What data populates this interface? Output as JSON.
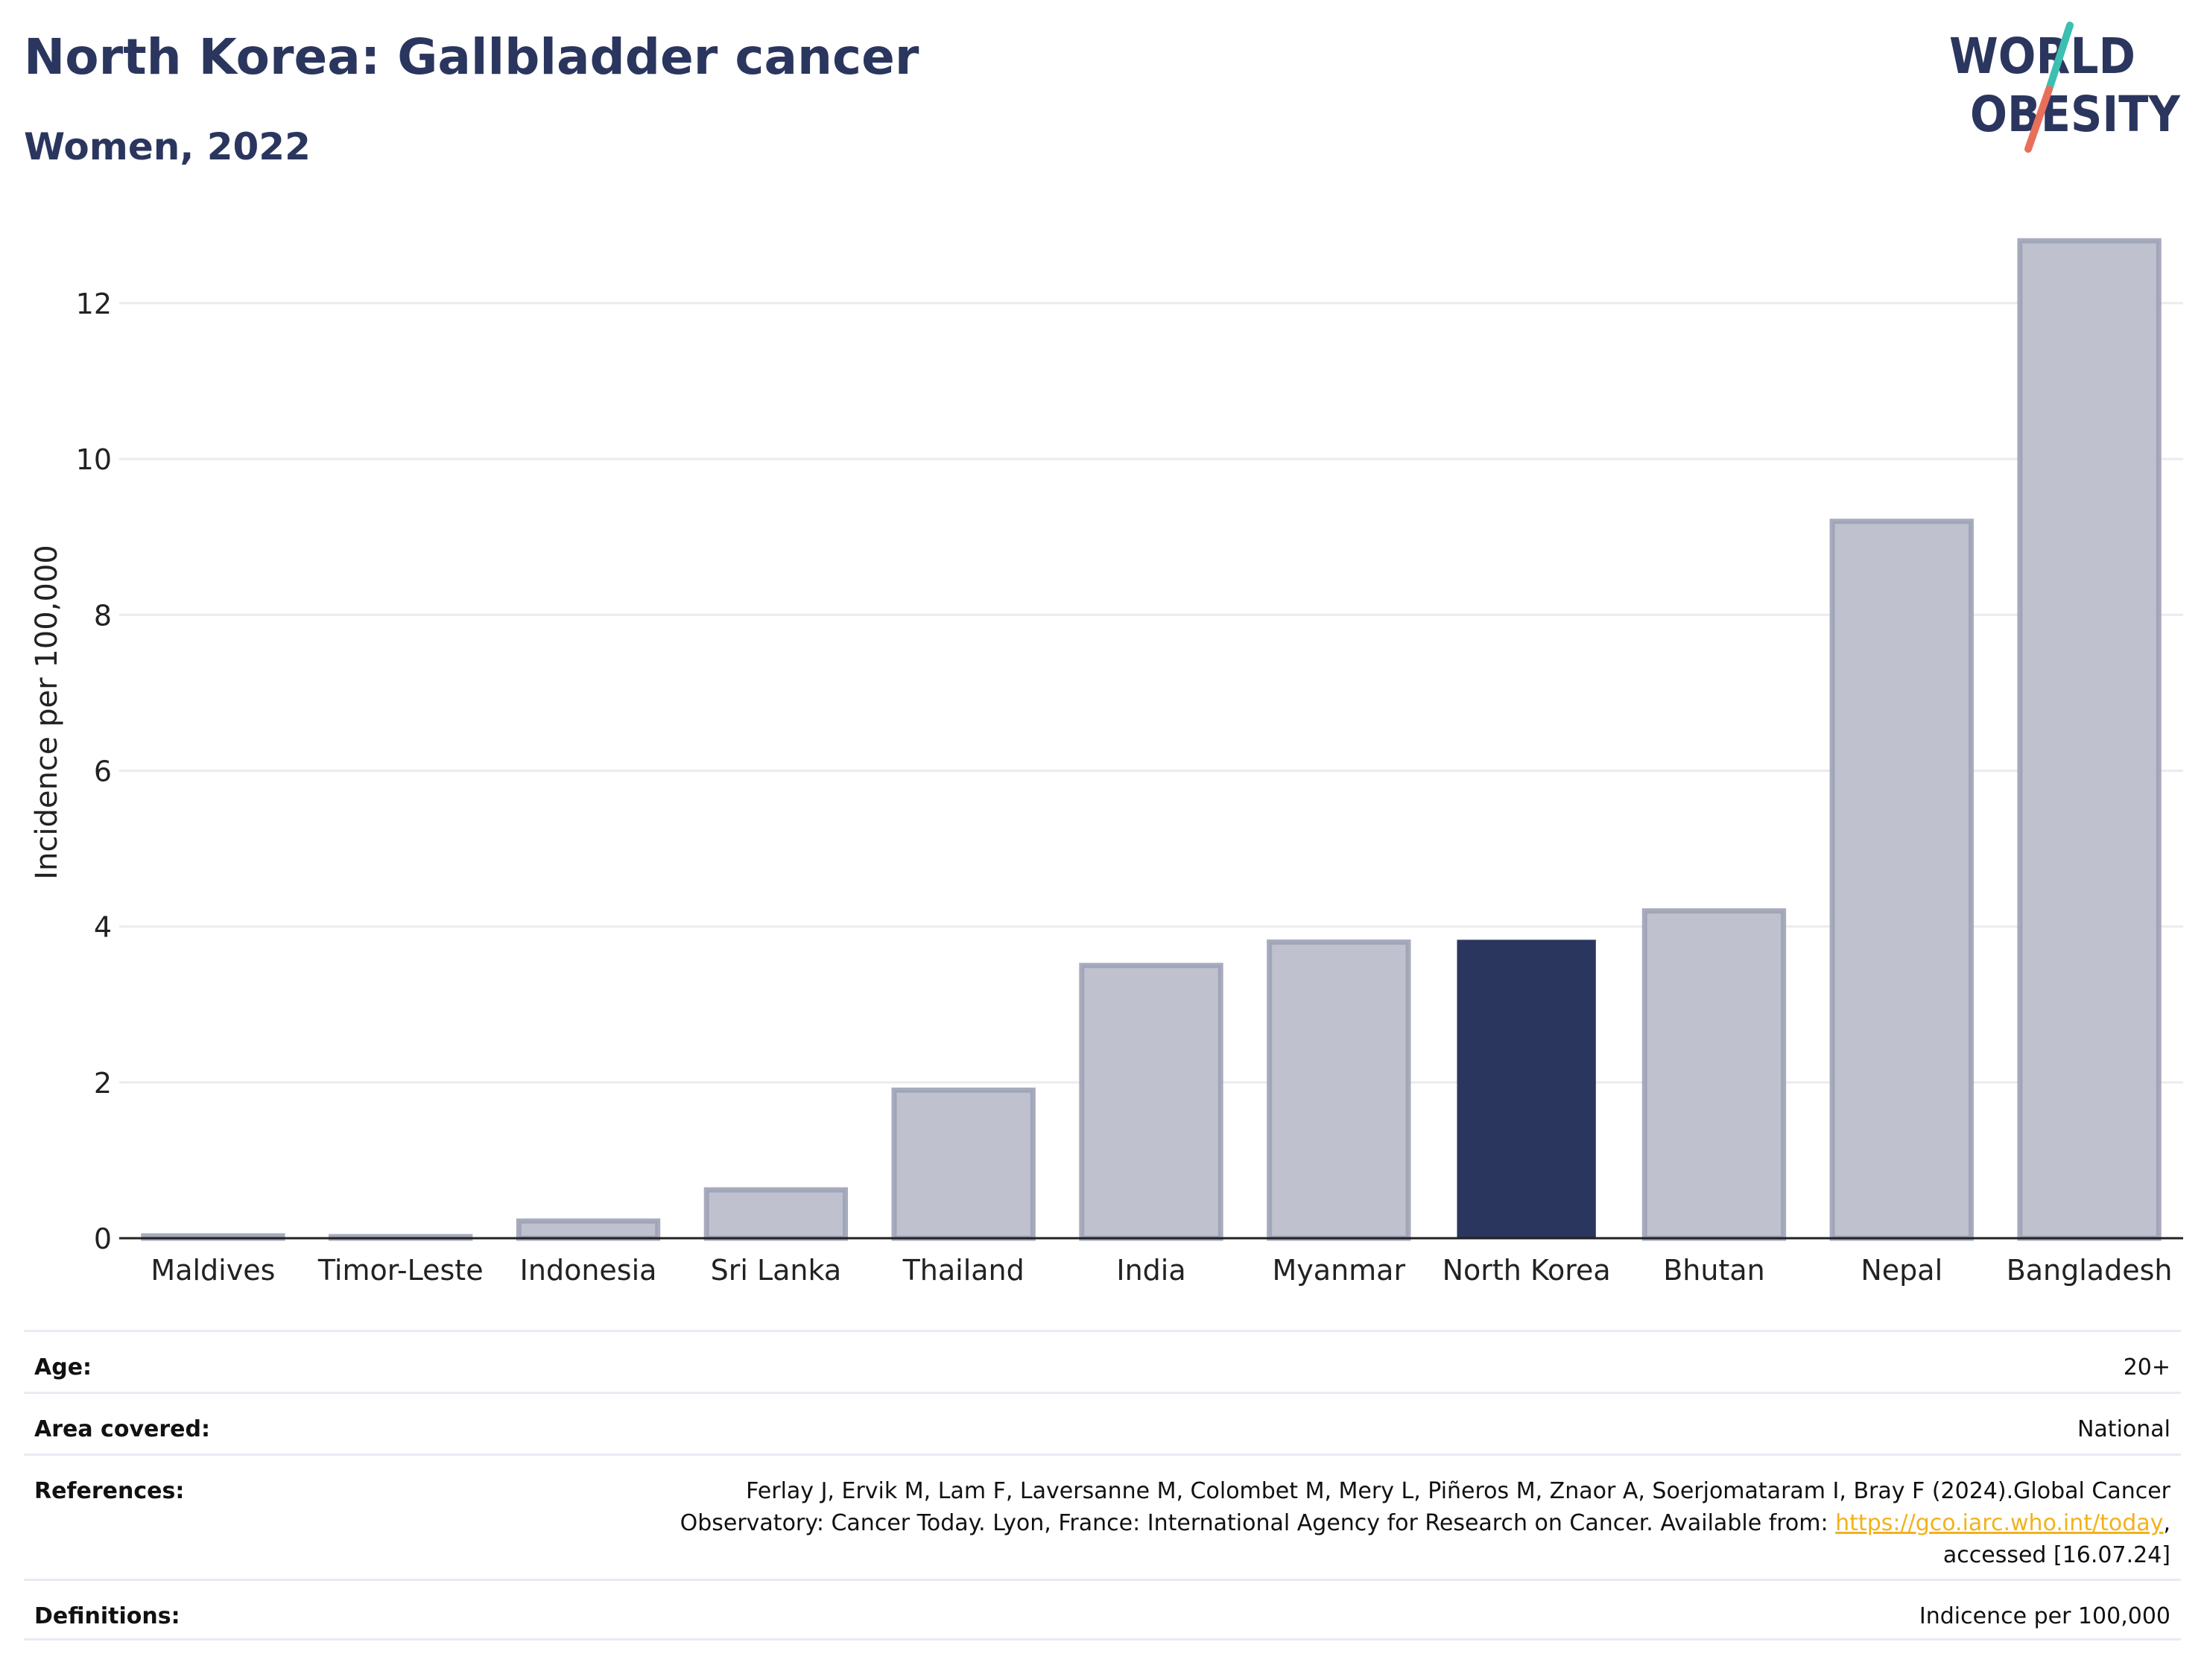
{
  "header": {
    "title": "North Korea: Gallbladder cancer",
    "subtitle": "Women, 2022"
  },
  "logo": {
    "line1": "WORLD",
    "line2": "OBESITY",
    "colors": {
      "text": "#2b365f",
      "slash_top": "#3bbfb0",
      "slash_bottom": "#e8705a"
    }
  },
  "chart_data": {
    "type": "bar",
    "categories": [
      "Maldives",
      "Timor-Leste",
      "Indonesia",
      "Sri Lanka",
      "Thailand",
      "India",
      "Myanmar",
      "North Korea",
      "Bhutan",
      "Nepal",
      "Bangladesh"
    ],
    "values": [
      0.03,
      0.02,
      0.22,
      0.62,
      1.9,
      3.5,
      3.8,
      3.83,
      4.2,
      9.2,
      12.8
    ],
    "highlight": "North Korea",
    "ylabel": "Incidence per 100,000",
    "xlabel": "",
    "ylim": [
      0,
      13.5
    ],
    "yticks": [
      0,
      2,
      4,
      6,
      8,
      10,
      12
    ],
    "grid": true,
    "colors": {
      "highlight": "#2b365f",
      "bar": "#bfc2ce",
      "bar_stroke": "#9da2b6",
      "grid": "#ebebf0",
      "axis": "#222222"
    }
  },
  "meta": {
    "age": {
      "label": "Age:",
      "value": "20+"
    },
    "area": {
      "label": "Area covered:",
      "value": "National"
    },
    "references": {
      "label": "References:",
      "line1": "Ferlay J, Ervik M, Lam F, Laversanne M, Colombet M, Mery L, Piñeros M, Znaor A, Soerjomataram I, Bray F (2024).Global Cancer",
      "line2_prefix": "Observatory: Cancer Today. Lyon, France: International Agency for Research on Cancer. Available from: ",
      "link": "https://gco.iarc.who.int/today",
      "line2_suffix": ",",
      "line3": "accessed [16.07.24]"
    },
    "definitions": {
      "label": "Definitions:",
      "value": "Indicence per 100,000"
    }
  }
}
